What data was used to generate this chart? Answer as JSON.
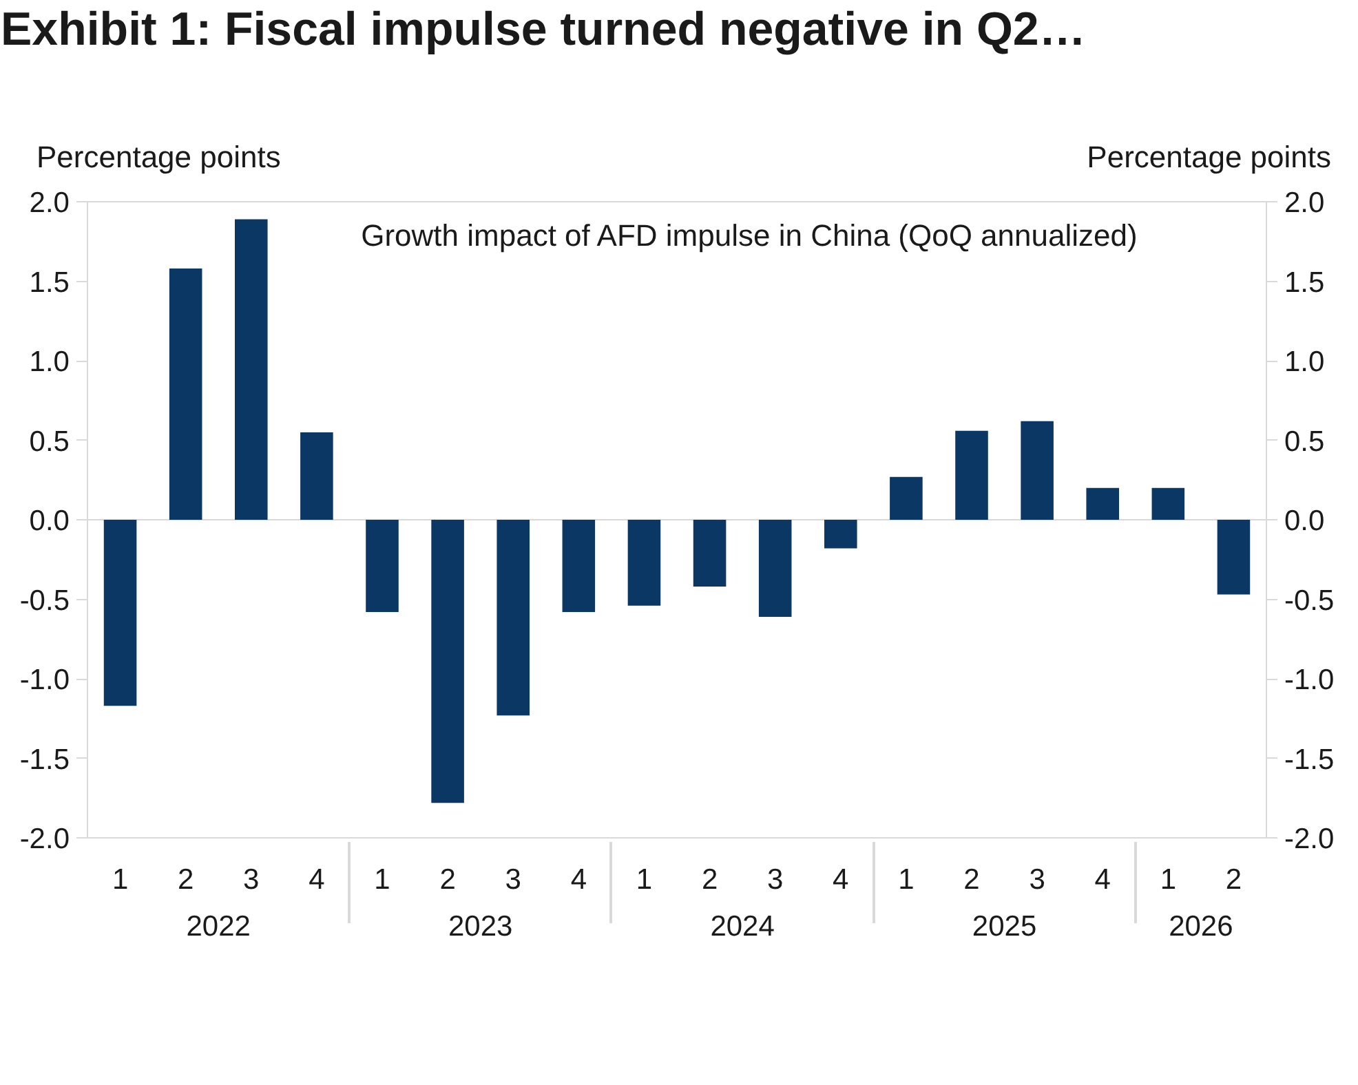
{
  "chart_data": {
    "type": "bar",
    "title": "Exhibit 1: Fiscal impulse turned negative in Q2…",
    "subtitle": "Growth impact of AFD impulse in China (QoQ annualized)",
    "ylabel": "Percentage points",
    "y2label": "Percentage points",
    "categories": [
      [
        "2022",
        "1"
      ],
      [
        null,
        "2"
      ],
      [
        null,
        "3"
      ],
      [
        null,
        "4"
      ],
      [
        "2023",
        "1"
      ],
      [
        null,
        "2"
      ],
      [
        null,
        "3"
      ],
      [
        null,
        "4"
      ],
      [
        "2024",
        "1"
      ],
      [
        null,
        "2"
      ],
      [
        null,
        "3"
      ],
      [
        null,
        "4"
      ],
      [
        "2025",
        "1"
      ],
      [
        null,
        "2"
      ],
      [
        null,
        "3"
      ],
      [
        null,
        "4"
      ],
      [
        "2026",
        "1"
      ],
      [
        null,
        "2"
      ]
    ],
    "values": [
      -1.17,
      1.58,
      1.89,
      0.55,
      -0.58,
      -1.78,
      -1.23,
      -0.58,
      -0.54,
      -0.42,
      -0.61,
      -0.18,
      0.27,
      0.56,
      0.62,
      0.2,
      0.2,
      -0.47
    ],
    "color": "#0a3763",
    "ylim": [
      -2.0,
      2.0
    ],
    "yticks": [
      {
        "value": -2.0,
        "label": "-2.0"
      },
      {
        "value": -1.5,
        "label": "-1.5"
      },
      {
        "value": -1.0,
        "label": "-1.0"
      },
      {
        "value": -0.5,
        "label": "-0.5"
      },
      {
        "value": 0.0,
        "label": "0.0"
      },
      {
        "value": 0.5,
        "label": "0.5"
      },
      {
        "value": 1.0,
        "label": "1.0"
      },
      {
        "value": 1.5,
        "label": "1.5"
      },
      {
        "value": 2.0,
        "label": "2.0"
      }
    ],
    "y2lim": [
      -2.0,
      2.0
    ],
    "y2ticks": [
      {
        "value": -2.0,
        "label": "-2.0"
      },
      {
        "value": -1.5,
        "label": "-1.5"
      },
      {
        "value": -1.0,
        "label": "-1.0"
      },
      {
        "value": -0.5,
        "label": "-0.5"
      },
      {
        "value": 0.0,
        "label": "0.0"
      },
      {
        "value": 0.5,
        "label": "0.5"
      },
      {
        "value": 1.0,
        "label": "1.0"
      },
      {
        "value": 1.5,
        "label": "1.5"
      },
      {
        "value": 2.0,
        "label": "2.0"
      }
    ],
    "ref_lines": [
      {
        "axis": "y",
        "value": 0.0,
        "color": "#d9d9d9"
      }
    ]
  }
}
